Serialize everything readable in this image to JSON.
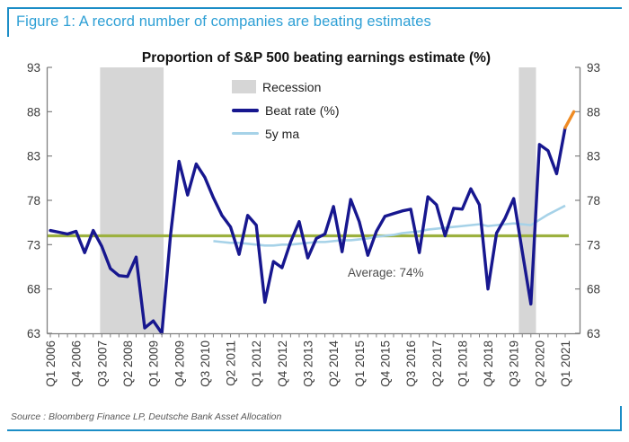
{
  "figure": {
    "caption": "Figure 1: A record number of companies are beating estimates",
    "source": "Source : Bloomberg Finance LP, Deutsche Bank Asset Allocation"
  },
  "colors": {
    "accent_blue": "#1b8dc6",
    "caption_blue": "#2d9fd5",
    "beat_rate": "#17178f",
    "five_year_ma": "#a6d2e8",
    "average": "#9cb13f",
    "latest_estimate": "#ef8b23",
    "recession": "#d6d6d6",
    "axis": "#808080",
    "tick_text": "#3c3c3c"
  },
  "chart_data": {
    "type": "line",
    "title": "Proportion of S&P 500 beating earnings estimate (%)",
    "x_start": "Q1 2006",
    "x_end": "Q1 2021",
    "x_tick_labels": [
      "Q1 2006",
      "Q4 2006",
      "Q3 2007",
      "Q2 2008",
      "Q1 2009",
      "Q4 2009",
      "Q3 2010",
      "Q2 2011",
      "Q1 2012",
      "Q4 2012",
      "Q3 2013",
      "Q2 2014",
      "Q1 2015",
      "Q4 2015",
      "Q3 2016",
      "Q2 2017",
      "Q1 2018",
      "Q4 2018",
      "Q3 2019",
      "Q2 2020",
      "Q1 2021"
    ],
    "x_label_every_n_quarters": 3,
    "ylim": [
      63,
      93
    ],
    "y_ticks": [
      63,
      68,
      73,
      78,
      83,
      88,
      93
    ],
    "grid": false,
    "legend": [
      "Recession",
      "Beat rate (%)",
      "5y ma"
    ],
    "legend_position": "upper center-left, inside plot",
    "series": [
      {
        "name": "Beat rate (%)",
        "color": "#17178f",
        "start_index": 0,
        "values": [
          74.6,
          74.4,
          74.2,
          74.5,
          72.1,
          74.6,
          72.8,
          70.3,
          69.5,
          69.4,
          71.6,
          63.6,
          64.4,
          63.0,
          74.0,
          82.4,
          78.6,
          82.1,
          80.6,
          78.3,
          76.3,
          75.0,
          71.9,
          76.3,
          75.2,
          66.5,
          71.1,
          70.4,
          73.3,
          75.6,
          71.5,
          73.7,
          74.2,
          77.3,
          72.2,
          78.1,
          75.6,
          71.8,
          74.5,
          76.2,
          76.5,
          76.8,
          77.0,
          72.1,
          78.4,
          77.5,
          74.0,
          77.1,
          77.0,
          79.3,
          77.5,
          68.0,
          74.3,
          76.0,
          78.2,
          72.2,
          66.3,
          84.3,
          83.6,
          81.0,
          86.2
        ]
      },
      {
        "name": "5y ma",
        "color": "#a6d2e8",
        "start_quarter": "Q4 2010",
        "start_index": 19,
        "values": [
          73.4,
          73.3,
          73.2,
          73.2,
          73.1,
          73.0,
          72.9,
          72.9,
          73.0,
          73.0,
          73.1,
          73.2,
          73.3,
          73.3,
          73.4,
          73.5,
          73.5,
          73.6,
          73.7,
          73.9,
          74.0,
          74.1,
          74.3,
          74.4,
          74.5,
          74.7,
          74.8,
          74.9,
          75.0,
          75.1,
          75.2,
          75.3,
          75.1,
          75.2,
          75.3,
          75.4,
          75.3,
          75.2,
          75.8,
          76.4,
          76.9,
          77.4
        ]
      }
    ],
    "latest_estimate": {
      "value": 88.0,
      "color": "#ef8b23",
      "note": "orange tip extending from last Beat rate point"
    },
    "average_line": {
      "value": 74.0,
      "label": "Average: 74%",
      "color": "#9cb13f"
    },
    "recessions": [
      {
        "label": "Recession",
        "from": "Q3 2007",
        "to": "Q2 2009",
        "from_index": 5.8,
        "to_index": 13.2
      },
      {
        "label": "Recession",
        "from": "Q4 2019",
        "to": "Q2 2020",
        "from_index": 54.6,
        "to_index": 56.6
      }
    ]
  }
}
